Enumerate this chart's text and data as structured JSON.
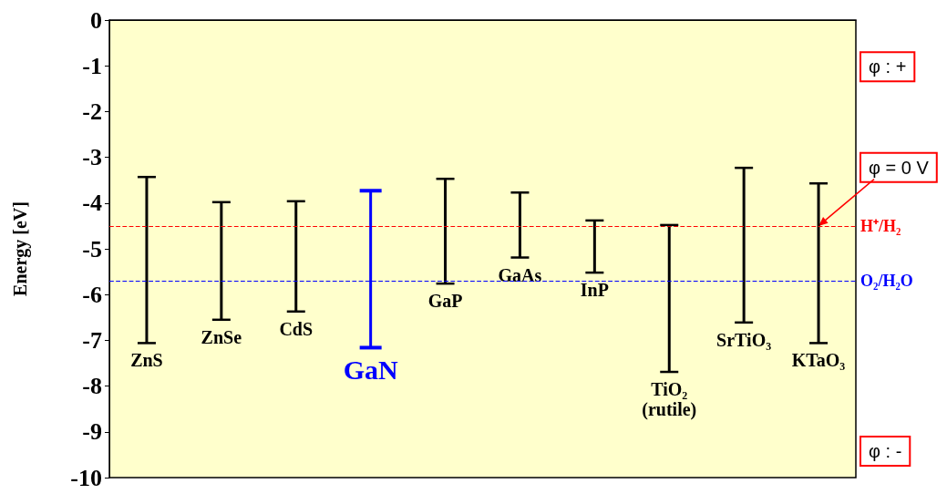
{
  "chart_data": {
    "type": "bar",
    "ylabel": "Energy [eV]",
    "categories": [
      "ZnS",
      "ZnSe",
      "CdS",
      "GaN",
      "GaP",
      "GaAs",
      "InP",
      "TiO₂\n(rutile)",
      "SrTiO₃",
      "KTaO₃"
    ],
    "base": [
      -7.06,
      -6.55,
      -6.37,
      -7.16,
      -5.76,
      -5.19,
      -5.52,
      -7.69,
      -6.61,
      -7.06
    ],
    "values": [
      3.63,
      2.57,
      2.41,
      3.43,
      2.29,
      1.42,
      1.14,
      3.21,
      3.38,
      3.49
    ],
    "colors": [
      "#000000",
      "#000000",
      "#000000",
      "#0000ff",
      "#000000",
      "#000000",
      "#000000",
      "#000000",
      "#000000",
      "#000000"
    ],
    "ylim": [
      -10,
      0
    ],
    "yticks": [
      -10,
      -9,
      -8,
      -7,
      -6,
      -5,
      -4,
      -3,
      -2,
      -1,
      0
    ],
    "tick_labels": "y",
    "grid": false,
    "ref_lines": [
      {
        "axis": "y",
        "value": -4.5,
        "label": "H⁺/H₂",
        "color": "#ff0000",
        "line_style": "dashed"
      },
      {
        "axis": "y",
        "value": -5.7,
        "label": "O₂/H₂O",
        "color": "#0000ff",
        "line_style": "dashed"
      }
    ],
    "annotations": [
      "φ : +",
      {
        "text": "φ = 0 V",
        "x": "KTaO₃",
        "y": -4.5
      },
      "φ : -"
    ]
  }
}
